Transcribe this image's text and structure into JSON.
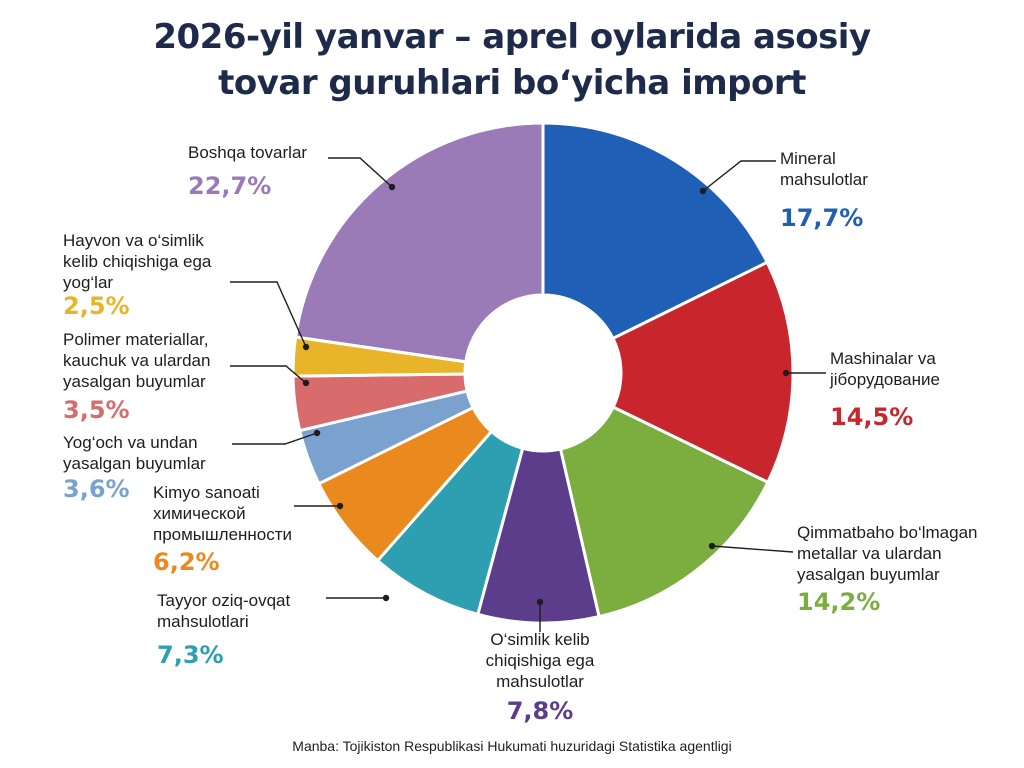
{
  "title_lines": [
    "2026-yil yanvar – aprel oylarida asosiy",
    "tovar guruhlari bo‘yicha import"
  ],
  "source": "Manba: Tojikiston Respublikasi Hukumati huzuridagi Statistika agentligi",
  "chart_data": {
    "type": "pie",
    "donut": true,
    "legend": "none",
    "slices": [
      {
        "label_lines": [
          "Mineral",
          "mahsulotlar"
        ],
        "value": 17.7,
        "value_label": "17,7%",
        "color": "#1f5fb5"
      },
      {
        "label_lines": [
          "Mashinalar va",
          "jiборудование"
        ],
        "value": 14.5,
        "value_label": "14,5%",
        "color": "#c8252c"
      },
      {
        "label_lines": [
          "Qimmatbaho bo‘lmagan",
          "metallar va ulardan",
          "yasalgan buyumlar"
        ],
        "value": 14.2,
        "value_label": "14,2%",
        "color": "#7cad3f"
      },
      {
        "label_lines": [
          "O‘simlik kelib",
          "chiqishiga ega",
          "mahsulotlar"
        ],
        "value": 7.8,
        "value_label": "7,8%",
        "color": "#5b3d8c"
      },
      {
        "label_lines": [
          "Tayyor oziq-ovqat",
          "mahsulotlari"
        ],
        "value": 7.3,
        "value_label": "7,3%",
        "color": "#2e9fb0"
      },
      {
        "label_lines": [
          "Kimyo sanoati",
          "химической",
          "промышленности"
        ],
        "value": 6.2,
        "value_label": "6,2%",
        "color": "#ea8a1e"
      },
      {
        "label_lines": [
          "Yog‘och va undan",
          "yasalgan buyumlar"
        ],
        "value": 3.6,
        "value_label": "3,6%",
        "color": "#7ba1cf"
      },
      {
        "label_lines": [
          "Polimer materiallar,",
          "kauchuk va ulardan",
          "yasalgan buyumlar"
        ],
        "value": 3.5,
        "value_label": "3,5%",
        "color": "#d86b6b"
      },
      {
        "label_lines": [
          "Hayvon va o‘simlik",
          "kelib chiqishiga ega",
          "yog‘lar"
        ],
        "value": 2.5,
        "value_label": "2,5%",
        "color": "#e8b42a"
      },
      {
        "label_lines": [
          "Boshqa tovarlar"
        ],
        "value": 22.7,
        "value_label": "22,7%",
        "color": "#9b7ab8"
      }
    ]
  }
}
